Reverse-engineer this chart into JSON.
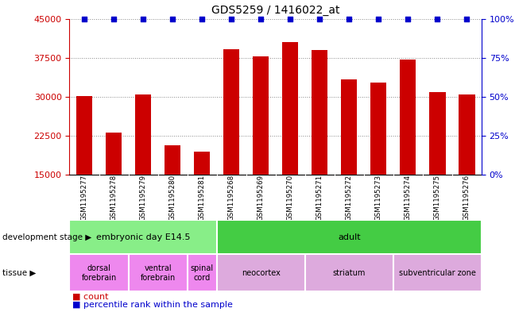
{
  "title": "GDS5259 / 1416022_at",
  "samples": [
    "GSM1195277",
    "GSM1195278",
    "GSM1195279",
    "GSM1195280",
    "GSM1195281",
    "GSM1195268",
    "GSM1195269",
    "GSM1195270",
    "GSM1195271",
    "GSM1195272",
    "GSM1195273",
    "GSM1195274",
    "GSM1195275",
    "GSM1195276"
  ],
  "counts": [
    30200,
    23100,
    30400,
    20700,
    19500,
    39200,
    37700,
    40500,
    39000,
    33300,
    32700,
    37200,
    30900,
    30500
  ],
  "percentiles": [
    100,
    100,
    100,
    100,
    100,
    100,
    100,
    100,
    100,
    100,
    100,
    100,
    100,
    100
  ],
  "ylim_left": [
    15000,
    45000
  ],
  "yticks_left": [
    15000,
    22500,
    30000,
    37500,
    45000
  ],
  "ylim_right": [
    0,
    100
  ],
  "yticks_right": [
    0,
    25,
    50,
    75,
    100
  ],
  "bar_color": "#cc0000",
  "percentile_color": "#0000cc",
  "bar_width": 0.55,
  "development_stage_groups": [
    {
      "label": "embryonic day E14.5",
      "start": 0,
      "end": 4,
      "color": "#88ee88"
    },
    {
      "label": "adult",
      "start": 5,
      "end": 13,
      "color": "#44cc44"
    }
  ],
  "tissue_groups": [
    {
      "label": "dorsal\nforebrain",
      "start": 0,
      "end": 1,
      "color": "#ee88ee"
    },
    {
      "label": "ventral\nforebrain",
      "start": 2,
      "end": 3,
      "color": "#ee88ee"
    },
    {
      "label": "spinal\ncord",
      "start": 4,
      "end": 4,
      "color": "#ee88ee"
    },
    {
      "label": "neocortex",
      "start": 5,
      "end": 7,
      "color": "#ddaadd"
    },
    {
      "label": "striatum",
      "start": 8,
      "end": 10,
      "color": "#ddaadd"
    },
    {
      "label": "subventricular zone",
      "start": 11,
      "end": 13,
      "color": "#ddaadd"
    }
  ],
  "dev_stage_row_label": "development stage",
  "tissue_row_label": "tissue",
  "legend_count_label": "count",
  "legend_percentile_label": "percentile rank within the sample",
  "background_color": "#ffffff",
  "grid_color": "#888888",
  "gsm_bg_color": "#cccccc"
}
